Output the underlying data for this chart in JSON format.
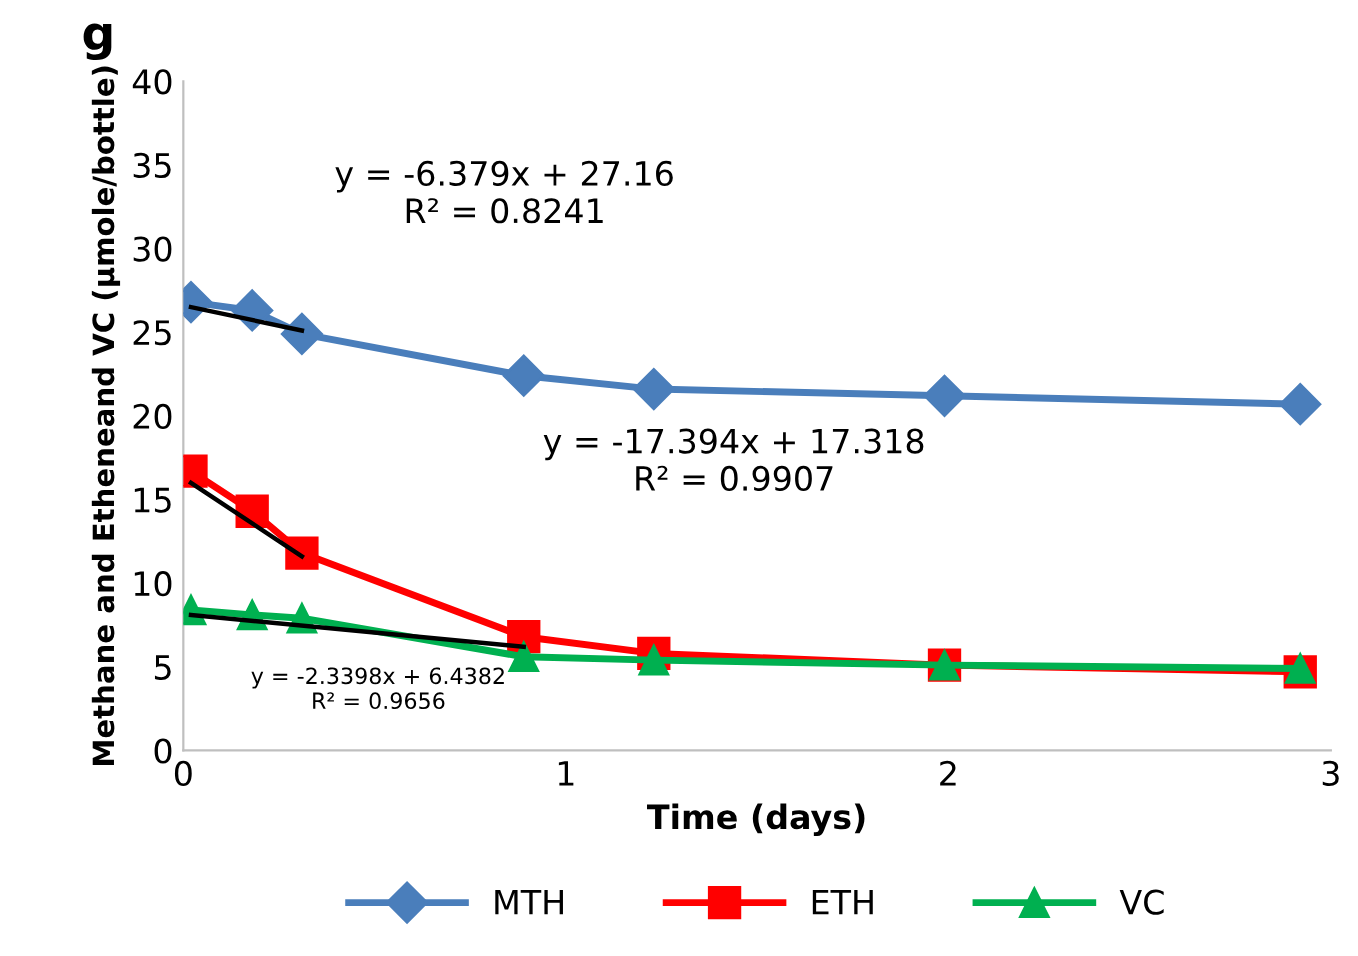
{
  "chart_data": {
    "type": "line",
    "title": "g",
    "xlabel": "Time (days)",
    "ylabel": "Methane and Etheneand VC (µmole/bottle)",
    "x": [
      0.02,
      0.18,
      0.31,
      0.89,
      1.23,
      1.99,
      2.92
    ],
    "series": [
      {
        "name": "MTH",
        "color": "#4a7ebb",
        "marker": "diamond",
        "values": [
          26.8,
          26.3,
          24.9,
          22.4,
          21.6,
          21.2,
          20.7
        ]
      },
      {
        "name": "ETH",
        "color": "#ff0000",
        "marker": "square",
        "values": [
          16.7,
          14.3,
          11.8,
          6.8,
          5.8,
          5.1,
          4.7
        ]
      },
      {
        "name": "VC",
        "color": "#00b050",
        "marker": "triangle",
        "values": [
          8.4,
          8.1,
          7.9,
          5.6,
          5.4,
          5.1,
          4.9
        ]
      },
      {
        "type": "line",
        "color": "#000000",
        "marker": "none",
        "x": [
          0.02,
          0.31
        ],
        "values": [
          26.5,
          25.1
        ]
      },
      {
        "type": "line",
        "color": "#000000",
        "marker": "none",
        "x": [
          0.02,
          0.31
        ],
        "values": [
          16.0,
          11.6
        ]
      },
      {
        "type": "line",
        "color": "#000000",
        "marker": "none",
        "x": [
          0.02,
          0.89
        ],
        "values": [
          8.1,
          6.2
        ]
      }
    ],
    "xlim": [
      0,
      3
    ],
    "xticks": [
      0,
      1,
      2,
      3
    ],
    "ylim": [
      0,
      40
    ],
    "yticks": [
      0,
      5,
      10,
      15,
      20,
      25,
      30,
      35,
      40
    ],
    "grid": false,
    "legend": "bottom",
    "annotations": [
      "y = -6.379x + 27.16\nR² = 0.8241",
      "y = -17.394x + 17.318\nR² = 0.9907",
      "y = -2.3398x + 6.4382\nR² = 0.9656"
    ]
  }
}
